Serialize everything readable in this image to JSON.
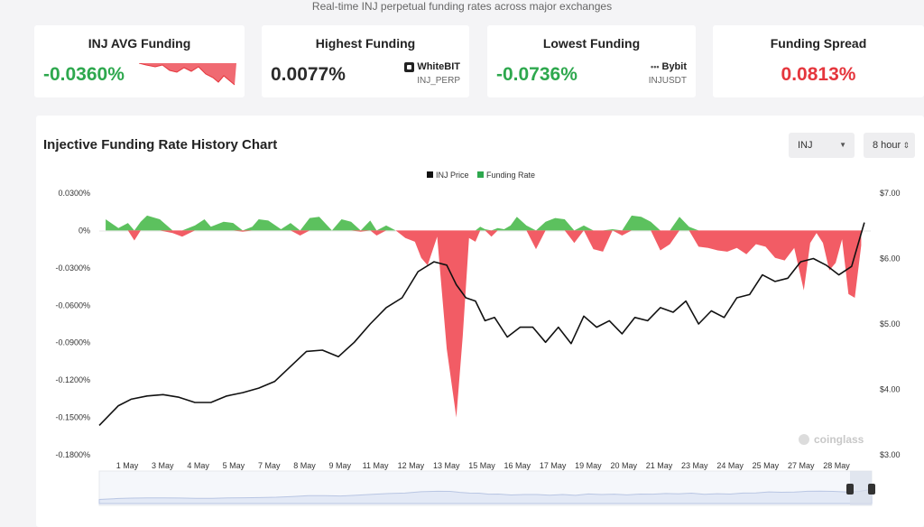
{
  "header": {
    "subtitle": "Real-time INJ perpetual funding rates across major exchanges"
  },
  "cards": {
    "avg": {
      "title": "INJ AVG Funding",
      "value": "-0.0360%"
    },
    "highest": {
      "title": "Highest Funding",
      "value": "0.0077%",
      "exchange": "WhiteBIT",
      "pair": "INJ_PERP"
    },
    "lowest": {
      "title": "Lowest Funding",
      "value": "-0.0736%",
      "exchange": "Bybit",
      "pair": "INJUSDT"
    },
    "spread": {
      "title": "Funding Spread",
      "value": "0.0813%"
    }
  },
  "chart_panel": {
    "title": "Injective Funding Rate History Chart",
    "symbol_select": "INJ",
    "interval_select": "8 hour",
    "watermark": "coinglass"
  },
  "colors": {
    "positive": "#2ea84e",
    "negative": "#e5363d",
    "price": "#111111",
    "positive_fill": "#5cc15e",
    "negative_fill": "#f25c65"
  },
  "chart_data": {
    "type": "area",
    "categories": [
      "1 May",
      "3 May",
      "4 May",
      "5 May",
      "7 May",
      "8 May",
      "9 May",
      "11 May",
      "12 May",
      "13 May",
      "15 May",
      "16 May",
      "17 May",
      "19 May",
      "20 May",
      "21 May",
      "23 May",
      "24 May",
      "25 May",
      "27 May",
      "28 May"
    ],
    "legend": [
      "INJ Price",
      "Funding Rate"
    ],
    "legend_position": "top-center",
    "left_axis": {
      "ticks": [
        "0.0300%",
        "0%",
        "-0.0300%",
        "-0.0600%",
        "-0.0900%",
        "-0.1200%",
        "-0.1500%",
        "-0.1800%"
      ],
      "range": [
        -0.18,
        0.03
      ]
    },
    "right_axis": {
      "ticks": [
        "$7.00",
        "$6.00",
        "$5.00",
        "$4.00",
        "$3.00"
      ],
      "range": [
        3,
        7
      ]
    },
    "series": [
      {
        "name": "Funding Rate",
        "x": [
          0.2,
          0.6,
          0.9,
          1.1,
          1.3,
          1.5,
          1.9,
          2.3,
          2.6,
          3.0,
          3.3,
          3.5,
          3.9,
          4.2,
          4.5,
          4.8,
          5.0,
          5.3,
          5.7,
          6.0,
          6.3,
          6.6,
          6.9,
          7.3,
          7.6,
          7.9,
          8.2,
          8.5,
          8.7,
          9.0,
          9.3,
          9.6,
          9.9,
          10.1,
          10.3,
          10.6,
          10.9,
          11.2,
          11.4,
          11.6,
          11.8,
          11.95,
          12.1,
          12.3,
          12.5,
          12.7,
          12.9,
          13.1,
          13.4,
          13.7,
          14.0,
          14.3,
          14.6,
          14.9,
          15.2,
          15.5,
          15.8,
          16.1,
          16.4,
          16.7,
          17.0,
          17.3,
          17.6,
          17.9,
          18.2,
          18.5,
          18.8,
          19.1,
          19.4,
          19.7,
          20.0,
          20.3,
          20.6,
          20.9,
          21.2,
          21.5,
          21.8,
          22.1,
          22.3,
          22.5,
          22.7,
          22.9,
          23.1,
          23.3,
          23.5,
          23.7,
          23.9
        ],
        "values": [
          0.009,
          0.002,
          0.006,
          -0.008,
          0.007,
          0.012,
          0.009,
          -0.002,
          -0.005,
          0.004,
          0.009,
          0.003,
          0.007,
          0.006,
          -0.001,
          0.003,
          0.009,
          0.008,
          0.001,
          0.006,
          -0.004,
          0.01,
          0.011,
          0.0,
          0.009,
          0.007,
          -0.001,
          0.008,
          -0.004,
          0.004,
          0.0,
          -0.006,
          -0.009,
          -0.022,
          -0.028,
          -0.005,
          -0.095,
          -0.15,
          -0.085,
          -0.006,
          -0.009,
          0.003,
          0.001,
          -0.005,
          0.002,
          0.001,
          0.004,
          0.011,
          0.004,
          -0.015,
          0.007,
          0.01,
          0.009,
          -0.01,
          0.004,
          -0.015,
          -0.017,
          0.001,
          -0.004,
          0.012,
          0.011,
          0.007,
          -0.016,
          -0.011,
          0.011,
          0.003,
          -0.013,
          -0.014,
          -0.016,
          -0.017,
          -0.014,
          -0.019,
          -0.011,
          -0.013,
          -0.022,
          -0.024,
          -0.014,
          -0.048,
          -0.01,
          -0.002,
          -0.01,
          -0.032,
          -0.026,
          -0.007,
          -0.051,
          -0.054,
          -0.012
        ]
      },
      {
        "name": "INJ Price",
        "x": [
          0.0,
          0.6,
          1.0,
          1.5,
          2.0,
          2.5,
          3.0,
          3.5,
          4.0,
          4.5,
          5.0,
          5.5,
          6.0,
          6.5,
          7.0,
          7.5,
          8.0,
          8.5,
          9.0,
          9.5,
          10.0,
          10.5,
          10.9,
          11.2,
          11.5,
          11.8,
          12.1,
          12.4,
          12.8,
          13.2,
          13.6,
          14.0,
          14.4,
          14.8,
          15.2,
          15.6,
          16.0,
          16.4,
          16.8,
          17.2,
          17.6,
          18.0,
          18.4,
          18.8,
          19.2,
          19.6,
          20.0,
          20.4,
          20.8,
          21.2,
          21.6,
          22.0,
          22.4,
          22.8,
          23.2,
          23.6,
          24.0
        ],
        "values": [
          3.45,
          3.75,
          3.85,
          3.9,
          3.92,
          3.88,
          3.8,
          3.8,
          3.9,
          3.95,
          4.02,
          4.12,
          4.35,
          4.58,
          4.6,
          4.5,
          4.72,
          5.0,
          5.25,
          5.4,
          5.8,
          5.95,
          5.9,
          5.6,
          5.4,
          5.35,
          5.05,
          5.1,
          4.8,
          4.95,
          4.95,
          4.72,
          4.95,
          4.7,
          5.12,
          4.95,
          5.05,
          4.85,
          5.1,
          5.05,
          5.25,
          5.18,
          5.35,
          5.0,
          5.2,
          5.1,
          5.4,
          5.45,
          5.75,
          5.65,
          5.7,
          5.95,
          6.0,
          5.9,
          5.75,
          5.88,
          6.55
        ]
      }
    ]
  }
}
